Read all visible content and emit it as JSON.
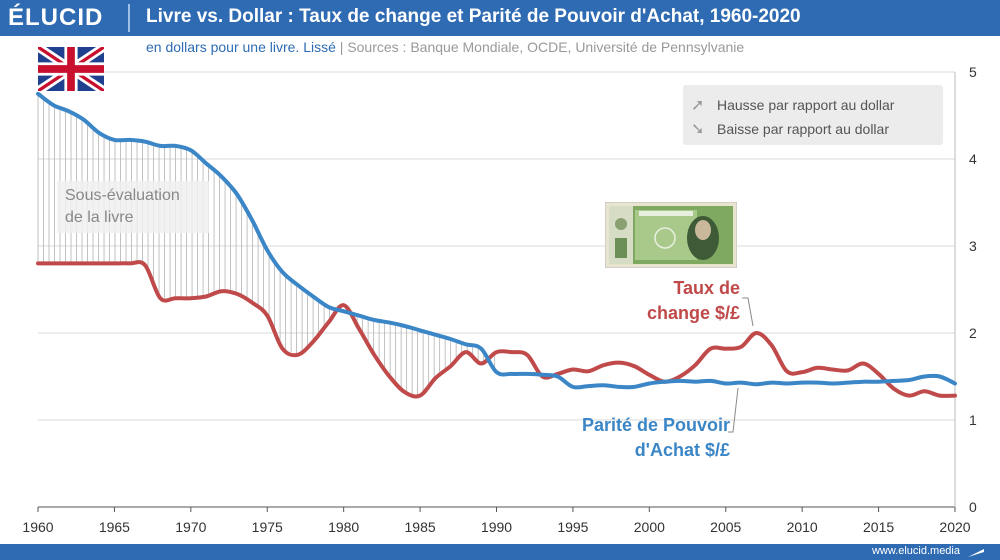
{
  "header": {
    "brand": "ÉLUCID",
    "title": "Livre vs. Dollar : Taux de change et Parité de Pouvoir d'Achat, 1960-2020",
    "subtitle_unit": "en dollars pour une livre. Lissé",
    "subtitle_sep": "|",
    "subtitle_sources": "Sources : Banque Mondiale, OCDE, Université de Pennsylvanie"
  },
  "legend": {
    "up": "Hausse par rapport au dollar",
    "down": "Baisse par rapport au dollar"
  },
  "annotation": {
    "line1": "Sous-évaluation",
    "line2": "de la livre"
  },
  "labels": {
    "red_line1": "Taux de",
    "red_line2": "change $/£",
    "blue_line1": "Parité de Pouvoir",
    "blue_line2": "d'Achat $/£"
  },
  "footer": {
    "website": "www.elucid.media"
  },
  "colors": {
    "header": "#2f6bb3",
    "exchange": "#c0494a",
    "ppp": "#3b86c6",
    "grid": "#d9d9d9"
  },
  "chart_data": {
    "type": "line",
    "x_ticks": [
      1960,
      1965,
      1970,
      1975,
      1980,
      1985,
      1990,
      1995,
      2000,
      2005,
      2010,
      2015,
      2020
    ],
    "y_ticks": [
      0,
      1,
      2,
      3,
      4,
      5
    ],
    "xlim": [
      1960,
      2020
    ],
    "ylim": [
      0,
      5
    ],
    "y_axis_side": "right",
    "grid": true,
    "series": [
      {
        "name": "Taux de change $/£",
        "color": "#c0494a",
        "x": [
          1960,
          1961,
          1962,
          1963,
          1964,
          1965,
          1966,
          1967,
          1968,
          1969,
          1970,
          1971,
          1972,
          1973,
          1974,
          1975,
          1976,
          1977,
          1978,
          1979,
          1980,
          1981,
          1982,
          1983,
          1984,
          1985,
          1986,
          1987,
          1988,
          1989,
          1990,
          1991,
          1992,
          1993,
          1994,
          1995,
          1996,
          1997,
          1998,
          1999,
          2000,
          2001,
          2002,
          2003,
          2004,
          2005,
          2006,
          2007,
          2008,
          2009,
          2010,
          2011,
          2012,
          2013,
          2014,
          2015,
          2016,
          2017,
          2018,
          2019,
          2020
        ],
        "y": [
          2.8,
          2.8,
          2.8,
          2.8,
          2.8,
          2.8,
          2.8,
          2.78,
          2.4,
          2.4,
          2.4,
          2.42,
          2.48,
          2.45,
          2.35,
          2.2,
          1.82,
          1.75,
          1.9,
          2.12,
          2.32,
          2.05,
          1.75,
          1.5,
          1.32,
          1.28,
          1.48,
          1.62,
          1.78,
          1.65,
          1.78,
          1.78,
          1.75,
          1.5,
          1.53,
          1.58,
          1.56,
          1.63,
          1.66,
          1.62,
          1.52,
          1.44,
          1.5,
          1.63,
          1.82,
          1.82,
          1.84,
          2.0,
          1.86,
          1.56,
          1.55,
          1.6,
          1.58,
          1.57,
          1.65,
          1.53,
          1.36,
          1.28,
          1.33,
          1.28,
          1.28
        ]
      },
      {
        "name": "Parité de Pouvoir d'Achat $/£",
        "color": "#3b86c6",
        "x": [
          1960,
          1961,
          1962,
          1963,
          1964,
          1965,
          1966,
          1967,
          1968,
          1969,
          1970,
          1971,
          1972,
          1973,
          1974,
          1975,
          1976,
          1977,
          1978,
          1979,
          1980,
          1981,
          1982,
          1983,
          1984,
          1985,
          1986,
          1987,
          1988,
          1989,
          1990,
          1991,
          1992,
          1993,
          1994,
          1995,
          1996,
          1997,
          1998,
          1999,
          2000,
          2001,
          2002,
          2003,
          2004,
          2005,
          2006,
          2007,
          2008,
          2009,
          2010,
          2011,
          2012,
          2013,
          2014,
          2015,
          2016,
          2017,
          2018,
          2019,
          2020
        ],
        "y": [
          4.75,
          4.62,
          4.55,
          4.45,
          4.3,
          4.22,
          4.22,
          4.2,
          4.15,
          4.15,
          4.1,
          3.95,
          3.8,
          3.6,
          3.3,
          2.95,
          2.7,
          2.55,
          2.42,
          2.3,
          2.25,
          2.2,
          2.15,
          2.12,
          2.08,
          2.03,
          1.98,
          1.93,
          1.87,
          1.82,
          1.55,
          1.53,
          1.53,
          1.52,
          1.5,
          1.38,
          1.39,
          1.4,
          1.38,
          1.38,
          1.42,
          1.44,
          1.45,
          1.44,
          1.45,
          1.42,
          1.43,
          1.41,
          1.43,
          1.42,
          1.43,
          1.43,
          1.42,
          1.43,
          1.44,
          1.44,
          1.45,
          1.46,
          1.5,
          1.5,
          1.42
        ]
      }
    ]
  }
}
